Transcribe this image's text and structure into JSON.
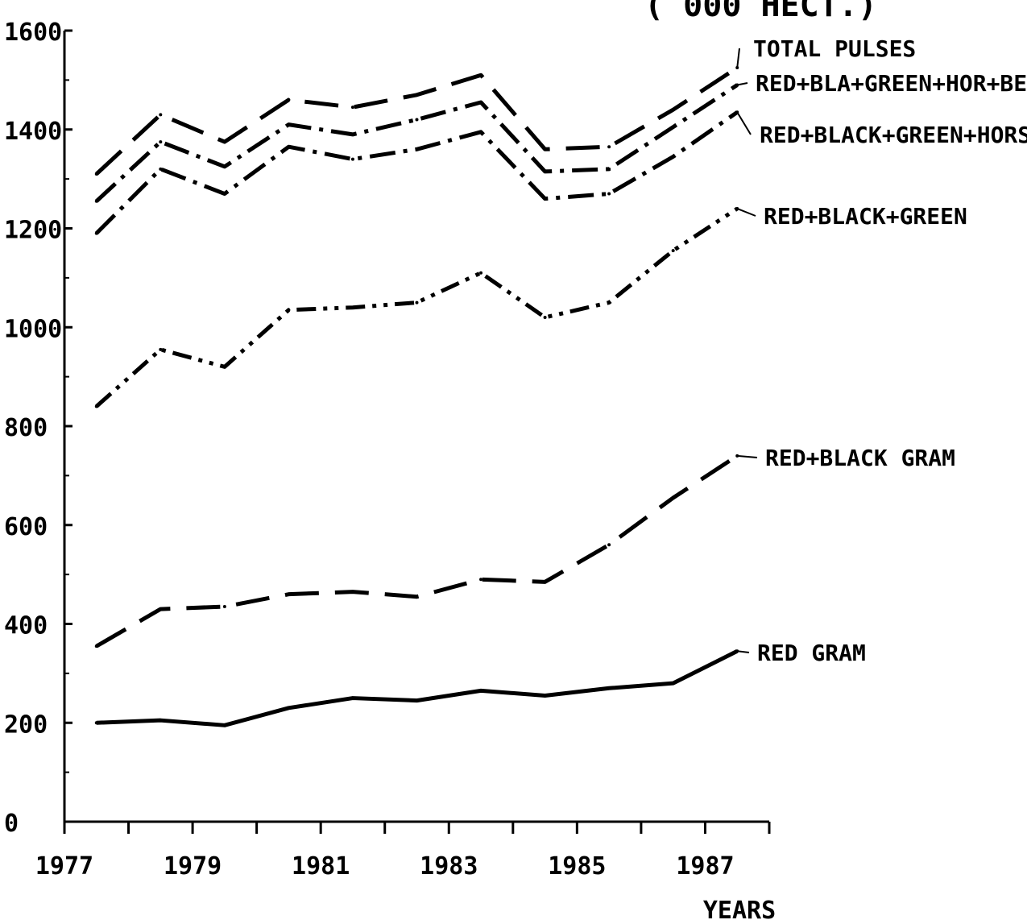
{
  "chart_data": {
    "type": "line",
    "title": "( 000 HECT.)",
    "xlabel": "YEARS",
    "ylabel": "",
    "x": [
      1977.5,
      1978.5,
      1979.5,
      1980.5,
      1981.5,
      1982.5,
      1983.5,
      1984.5,
      1985.5,
      1986.5,
      1987.5
    ],
    "xlim": [
      1977,
      1988
    ],
    "ylim": [
      0,
      1600
    ],
    "x_ticks": [
      "1977",
      "1979",
      "1981",
      "1983",
      "1985",
      "1987"
    ],
    "y_ticks": [
      "0",
      "200",
      "400",
      "600",
      "800",
      "1000",
      "1200",
      "1400",
      "1600"
    ],
    "grid": false,
    "series": [
      {
        "name": "TOTAL PULSES",
        "style": "long-dash",
        "values": [
          1310,
          1430,
          1375,
          1460,
          1445,
          1470,
          1510,
          1360,
          1365,
          1440,
          1525
        ]
      },
      {
        "name": "RED+BLA+GREEN+HOR+BENGAL",
        "style": "dash-dot",
        "values": [
          1255,
          1375,
          1325,
          1410,
          1390,
          1420,
          1455,
          1315,
          1320,
          1405,
          1490
        ]
      },
      {
        "name": "RED+BLACK+GREEN+HORSE",
        "style": "dash-dot",
        "values": [
          1190,
          1320,
          1270,
          1365,
          1340,
          1360,
          1395,
          1260,
          1270,
          1345,
          1435
        ]
      },
      {
        "name": "RED+BLACK+GREEN",
        "style": "dash-dot-dot",
        "values": [
          840,
          955,
          920,
          1035,
          1040,
          1050,
          1110,
          1020,
          1050,
          1155,
          1240
        ]
      },
      {
        "name": "RED+BLACK GRAM",
        "style": "long-dash",
        "values": [
          355,
          430,
          435,
          460,
          465,
          455,
          490,
          485,
          560,
          655,
          740
        ]
      },
      {
        "name": "RED GRAM",
        "style": "solid",
        "values": [
          200,
          205,
          195,
          230,
          250,
          245,
          265,
          255,
          270,
          280,
          345
        ]
      }
    ]
  }
}
